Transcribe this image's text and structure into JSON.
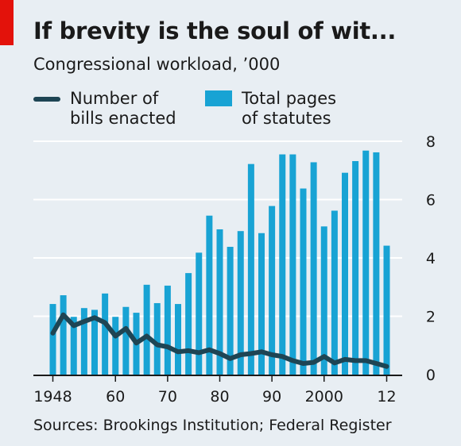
{
  "header": {
    "title": "If brevity is the soul of wit...",
    "subtitle": "Congressional workload, ’000"
  },
  "legend": {
    "line_label_1": "Number of",
    "line_label_2": "bills enacted",
    "bar_label_1": "Total pages",
    "bar_label_2": "of statutes"
  },
  "footer": {
    "source": "Sources: Brookings Institution; Federal Register"
  },
  "colors": {
    "bars": "#18a3d4",
    "line": "#1e4554",
    "background": "#e8eef3",
    "accent": "#e3120b"
  },
  "chart_data": {
    "type": "bar",
    "title": "If brevity is the soul of wit...",
    "subtitle": "Congressional workload, ’000",
    "x": [
      1948,
      1950,
      1952,
      1954,
      1956,
      1958,
      1960,
      1962,
      1964,
      1966,
      1968,
      1970,
      1972,
      1974,
      1976,
      1978,
      1980,
      1982,
      1984,
      1986,
      1988,
      1990,
      1992,
      1994,
      1996,
      1998,
      2000,
      2002,
      2004,
      2006,
      2008,
      2010,
      2012
    ],
    "x_ticks": [
      1948,
      1960,
      1970,
      1980,
      1990,
      2000,
      2012
    ],
    "x_tick_labels": [
      "1948",
      "60",
      "70",
      "80",
      "90",
      "2000",
      "12"
    ],
    "y_ticks": [
      0,
      2,
      4,
      6,
      8
    ],
    "ylim": [
      0,
      8
    ],
    "grid": true,
    "y_axis_side": "right",
    "series": [
      {
        "name": "Total pages of statutes",
        "type": "bar",
        "values": [
          2.42,
          2.72,
          1.98,
          2.28,
          2.22,
          2.78,
          1.98,
          2.32,
          2.12,
          3.08,
          2.45,
          3.05,
          2.42,
          3.48,
          4.18,
          5.45,
          4.98,
          4.38,
          4.92,
          7.22,
          4.85,
          5.78,
          7.55,
          7.55,
          6.38,
          7.28,
          5.08,
          5.62,
          6.92,
          7.32,
          7.68,
          7.62,
          4.42
        ]
      },
      {
        "name": "Number of bills enacted",
        "type": "line",
        "values": [
          1.42,
          2.05,
          1.68,
          1.82,
          1.95,
          1.78,
          1.32,
          1.58,
          1.08,
          1.32,
          1.02,
          0.95,
          0.78,
          0.82,
          0.75,
          0.85,
          0.72,
          0.55,
          0.68,
          0.72,
          0.78,
          0.68,
          0.62,
          0.48,
          0.38,
          0.42,
          0.62,
          0.4,
          0.52,
          0.48,
          0.48,
          0.38,
          0.28
        ]
      }
    ]
  }
}
